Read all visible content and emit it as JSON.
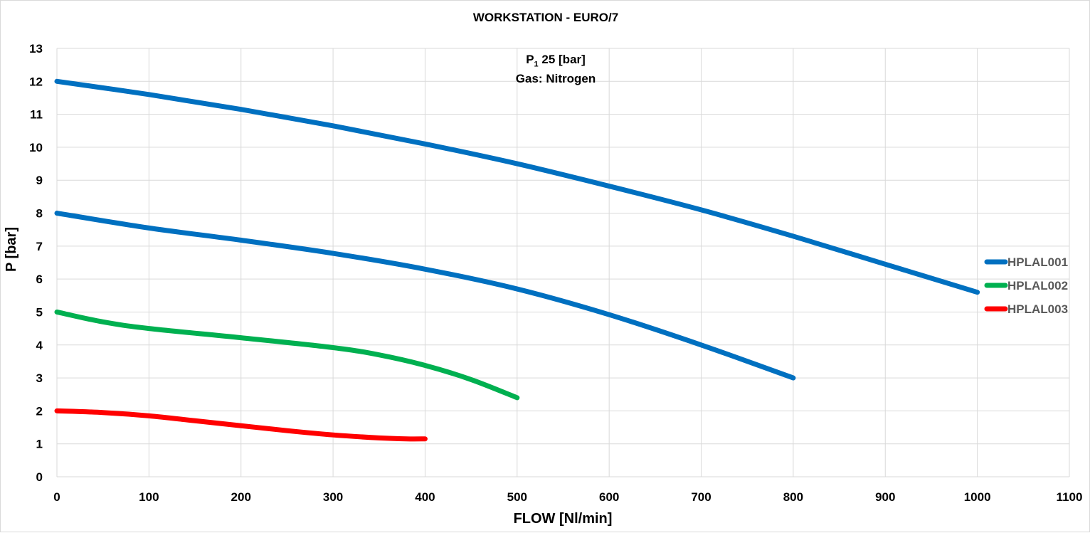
{
  "chart_data": {
    "type": "line",
    "title": "WORKSTATION  - EURO/7",
    "annotation": {
      "p_symbol": "P",
      "p_subscript": "1",
      "p_value": "25 [bar]",
      "gas": "Gas: Nitrogen"
    },
    "xlabel": "FLOW [Nl/min]",
    "ylabel": "P [bar]",
    "xlim": [
      0,
      1100
    ],
    "ylim": [
      0,
      13
    ],
    "xticks": [
      0,
      100,
      200,
      300,
      400,
      500,
      600,
      700,
      800,
      900,
      1000,
      1100
    ],
    "yticks": [
      0,
      1,
      2,
      3,
      4,
      5,
      6,
      7,
      8,
      9,
      10,
      11,
      12,
      13
    ],
    "grid": true,
    "legend_position": "right",
    "series": [
      {
        "name": "HPLAL001",
        "color": "#0070c0",
        "x": [
          0,
          100,
          200,
          300,
          400,
          500,
          600,
          700,
          800,
          900,
          1000
        ],
        "y": [
          12.0,
          11.6,
          11.15,
          10.65,
          10.1,
          9.5,
          8.82,
          8.1,
          7.3,
          6.45,
          5.6
        ]
      },
      {
        "name": "HPLAL001",
        "color": "#0070c0",
        "x": [
          0,
          100,
          200,
          300,
          400,
          500,
          600,
          700,
          800
        ],
        "y": [
          8.0,
          7.55,
          7.18,
          6.78,
          6.3,
          5.7,
          4.92,
          4.0,
          3.0
        ]
      },
      {
        "name": "HPLAL002",
        "color": "#00b050",
        "x": [
          0,
          50,
          100,
          200,
          300,
          350,
          400,
          450,
          500
        ],
        "y": [
          5.0,
          4.7,
          4.5,
          4.22,
          3.92,
          3.7,
          3.38,
          2.95,
          2.4
        ]
      },
      {
        "name": "HPLAL003",
        "color": "#ff0000",
        "x": [
          0,
          50,
          100,
          150,
          200,
          250,
          300,
          350,
          380,
          400
        ],
        "y": [
          2.0,
          1.95,
          1.85,
          1.7,
          1.55,
          1.4,
          1.27,
          1.18,
          1.15,
          1.15
        ]
      }
    ],
    "legend": [
      {
        "name": "HPLAL001",
        "color": "#0070c0"
      },
      {
        "name": "HPLAL002",
        "color": "#00b050"
      },
      {
        "name": "HPLAL003",
        "color": "#ff0000"
      }
    ]
  }
}
